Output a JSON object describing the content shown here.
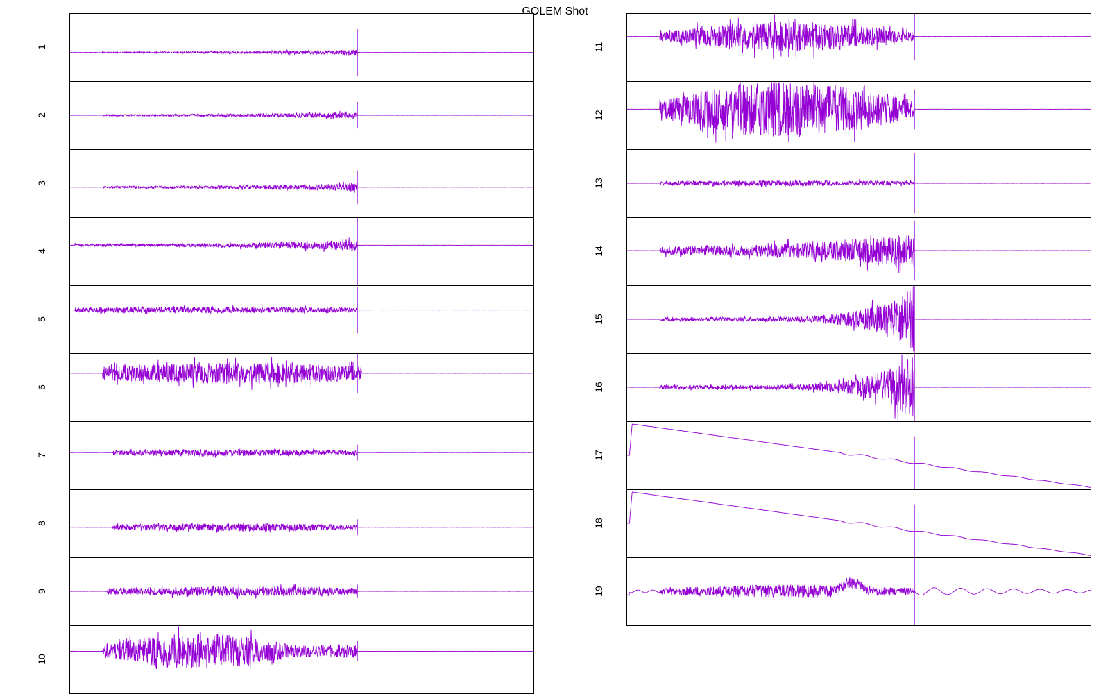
{
  "chart_data": {
    "type": "line",
    "title": "GOLEM Shot",
    "trace_color": "#9400D3",
    "layout": "two-column stacked panels, shared time axis, no tick labels",
    "panels": [
      {
        "label": "1",
        "kind": "burst",
        "start": 0.05,
        "end": 0.62,
        "base": 0.58,
        "amp": 0.04,
        "profile": "ramp",
        "spike": 0.35
      },
      {
        "label": "2",
        "kind": "burst",
        "start": 0.07,
        "end": 0.62,
        "base": 0.5,
        "amp": 0.05,
        "profile": "ramp",
        "spike": 0.2
      },
      {
        "label": "3",
        "kind": "burst",
        "start": 0.07,
        "end": 0.62,
        "base": 0.56,
        "amp": 0.06,
        "profile": "ramp",
        "spike": 0.25
      },
      {
        "label": "4",
        "kind": "burst",
        "start": 0.01,
        "end": 0.62,
        "base": 0.41,
        "amp": 0.08,
        "profile": "ramp",
        "spike": 0.6
      },
      {
        "label": "5",
        "kind": "burst",
        "start": 0.01,
        "end": 0.62,
        "base": 0.36,
        "amp": 0.06,
        "profile": "flat",
        "spike": 0.35
      },
      {
        "label": "6",
        "kind": "burst",
        "start": 0.07,
        "end": 0.63,
        "base": 0.29,
        "amp": 0.2,
        "profile": "flat",
        "spike": 0.3
      },
      {
        "label": "7",
        "kind": "burst",
        "start": 0.09,
        "end": 0.62,
        "base": 0.46,
        "amp": 0.06,
        "profile": "flat",
        "spike": 0.12
      },
      {
        "label": "8",
        "kind": "burst",
        "start": 0.09,
        "end": 0.62,
        "base": 0.56,
        "amp": 0.07,
        "profile": "flat",
        "spike": 0.12
      },
      {
        "label": "9",
        "kind": "burst",
        "start": 0.08,
        "end": 0.62,
        "base": 0.5,
        "amp": 0.09,
        "profile": "flat",
        "spike": 0.1
      },
      {
        "label": "10",
        "kind": "burst",
        "start": 0.07,
        "end": 0.62,
        "base": 0.38,
        "amp": 0.27,
        "profile": "early",
        "spike": 0.15
      },
      {
        "label": "11",
        "kind": "burst",
        "start": 0.07,
        "end": 0.62,
        "base": 0.34,
        "amp": 0.22,
        "profile": "hump",
        "spike": 0.35
      },
      {
        "label": "12",
        "kind": "burst",
        "start": 0.07,
        "end": 0.62,
        "base": 0.41,
        "amp": 0.42,
        "profile": "hump",
        "spike": 0.3
      },
      {
        "label": "13",
        "kind": "burst",
        "start": 0.07,
        "end": 0.62,
        "base": 0.5,
        "amp": 0.05,
        "profile": "flat",
        "spike": 0.45
      },
      {
        "label": "14",
        "kind": "burst",
        "start": 0.07,
        "end": 0.62,
        "base": 0.49,
        "amp": 0.26,
        "profile": "ramp",
        "spike": 0.45
      },
      {
        "label": "15",
        "kind": "burst",
        "start": 0.07,
        "end": 0.62,
        "base": 0.5,
        "amp": 0.5,
        "profile": "sharp",
        "spike": 0.5
      },
      {
        "label": "16",
        "kind": "burst",
        "start": 0.07,
        "end": 0.62,
        "base": 0.5,
        "amp": 0.5,
        "profile": "sharp",
        "spike": 0.5
      },
      {
        "label": "17",
        "kind": "decay",
        "start": 0.005,
        "base": 0.02,
        "amp": 0.05,
        "profile": "decay",
        "spike": 0.4
      },
      {
        "label": "18",
        "kind": "decay",
        "start": 0.005,
        "base": 0.02,
        "amp": 0.05,
        "profile": "decay",
        "spike": 0.4
      },
      {
        "label": "19",
        "kind": "wavy",
        "start": 0.07,
        "end": 0.62,
        "base": 0.5,
        "amp": 0.2,
        "profile": "flat",
        "spike": 0.5
      }
    ]
  }
}
